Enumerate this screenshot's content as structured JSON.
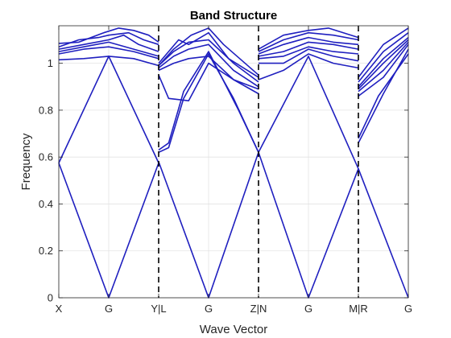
{
  "chart_data": {
    "type": "line",
    "title": "Band Structure",
    "xlabel": "Wave Vector",
    "ylabel": "Frequency",
    "xlim": [
      0,
      7
    ],
    "ylim": [
      0,
      1.16
    ],
    "grid": true,
    "legend": "none",
    "line_color": "#1f1fbf",
    "divider_color": "#000000",
    "x_ticks": [
      {
        "x": 0,
        "label": "X"
      },
      {
        "x": 1,
        "label": "G"
      },
      {
        "x": 2,
        "label": "Y|L"
      },
      {
        "x": 3,
        "label": "G"
      },
      {
        "x": 4,
        "label": "Z|N"
      },
      {
        "x": 5,
        "label": "G"
      },
      {
        "x": 6,
        "label": "M|R"
      },
      {
        "x": 7,
        "label": "G"
      }
    ],
    "y_ticks": [
      {
        "y": 0,
        "label": "0"
      },
      {
        "y": 0.2,
        "label": "0.2"
      },
      {
        "y": 0.4,
        "label": "0.4"
      },
      {
        "y": 0.6,
        "label": "0.6"
      },
      {
        "y": 0.8,
        "label": "0.8"
      },
      {
        "y": 1.0,
        "label": "1"
      }
    ],
    "segment_boundaries": [
      2,
      4,
      6
    ],
    "series": [
      {
        "x": [
          0,
          1,
          2
        ],
        "y": [
          0.575,
          0,
          0.575
        ]
      },
      {
        "x": [
          0,
          1,
          2
        ],
        "y": [
          0.575,
          1.03,
          0.575
        ]
      },
      {
        "x": [
          0,
          0.5,
          1,
          1.5,
          2
        ],
        "y": [
          1.015,
          1.02,
          1.03,
          1.02,
          0.99
        ]
      },
      {
        "x": [
          0,
          0.5,
          1,
          1.5,
          2
        ],
        "y": [
          1.04,
          1.06,
          1.07,
          1.05,
          1.02
        ]
      },
      {
        "x": [
          0,
          0.5,
          1,
          1.5,
          2
        ],
        "y": [
          1.05,
          1.07,
          1.09,
          1.06,
          1.03
        ]
      },
      {
        "x": [
          0,
          0.5,
          1,
          1.3,
          1.6,
          2
        ],
        "y": [
          1.06,
          1.08,
          1.1,
          1.12,
          1.08,
          1.05
        ]
      },
      {
        "x": [
          0,
          0.4,
          0.8,
          1,
          1.4,
          1.7,
          2
        ],
        "y": [
          1.07,
          1.1,
          1.11,
          1.12,
          1.13,
          1.1,
          1.08
        ]
      },
      {
        "x": [
          0,
          0.4,
          0.9,
          1.2,
          1.5,
          1.8,
          2
        ],
        "y": [
          1.085,
          1.09,
          1.13,
          1.15,
          1.14,
          1.12,
          1.09
        ]
      },
      {
        "x": [
          2,
          3,
          4
        ],
        "y": [
          0.58,
          0,
          0.62
        ]
      },
      {
        "x": [
          2,
          2.2,
          2.5,
          3,
          3.5,
          4
        ],
        "y": [
          0.62,
          0.64,
          0.85,
          1.04,
          0.85,
          0.62
        ]
      },
      {
        "x": [
          2,
          2.2,
          2.5,
          3,
          3.6,
          4
        ],
        "y": [
          0.63,
          0.66,
          0.88,
          1.05,
          0.8,
          0.62
        ]
      },
      {
        "x": [
          2,
          2.2,
          2.6,
          3,
          3.5,
          4
        ],
        "y": [
          0.95,
          0.85,
          0.84,
          1.0,
          0.93,
          0.87
        ]
      },
      {
        "x": [
          2,
          2.3,
          2.6,
          3,
          3.5,
          4
        ],
        "y": [
          0.97,
          1.0,
          1.02,
          1.03,
          0.93,
          0.89
        ]
      },
      {
        "x": [
          2,
          2.3,
          2.6,
          3,
          3.5,
          4
        ],
        "y": [
          0.98,
          1.03,
          1.06,
          1.08,
          0.97,
          0.9
        ]
      },
      {
        "x": [
          2,
          2.3,
          2.6,
          3,
          3.5,
          4
        ],
        "y": [
          0.99,
          1.05,
          1.09,
          1.1,
          1.0,
          0.92
        ]
      },
      {
        "x": [
          2,
          2.4,
          2.6,
          3,
          3.4,
          4
        ],
        "y": [
          1.0,
          1.1,
          1.08,
          1.13,
          1.02,
          0.94
        ]
      },
      {
        "x": [
          2,
          2.3,
          2.65,
          3,
          3.3,
          4
        ],
        "y": [
          0.99,
          1.06,
          1.12,
          1.15,
          1.08,
          0.95
        ]
      },
      {
        "x": [
          4,
          5,
          6
        ],
        "y": [
          0.62,
          0,
          0.55
        ]
      },
      {
        "x": [
          4,
          5,
          6
        ],
        "y": [
          0.62,
          1.03,
          0.55
        ]
      },
      {
        "x": [
          4,
          4.5,
          5,
          5.5,
          6
        ],
        "y": [
          0.93,
          0.97,
          1.04,
          1.0,
          0.98
        ]
      },
      {
        "x": [
          4,
          4.5,
          5,
          5.5,
          6
        ],
        "y": [
          1.0,
          1.0,
          1.06,
          1.03,
          1.01
        ]
      },
      {
        "x": [
          4,
          4.5,
          5,
          5.5,
          6
        ],
        "y": [
          1.02,
          1.03,
          1.07,
          1.05,
          1.04
        ]
      },
      {
        "x": [
          4,
          4.5,
          5,
          5.5,
          6
        ],
        "y": [
          1.03,
          1.05,
          1.09,
          1.08,
          1.06
        ]
      },
      {
        "x": [
          4,
          4.5,
          5,
          5.5,
          6
        ],
        "y": [
          1.04,
          1.08,
          1.11,
          1.09,
          1.08
        ]
      },
      {
        "x": [
          4,
          4.5,
          5,
          5.5,
          6
        ],
        "y": [
          1.05,
          1.1,
          1.13,
          1.12,
          1.1
        ]
      },
      {
        "x": [
          4,
          4.5,
          5,
          5.4,
          6
        ],
        "y": [
          1.06,
          1.12,
          1.14,
          1.15,
          1.11
        ]
      },
      {
        "x": [
          6,
          7
        ],
        "y": [
          0.55,
          0
        ]
      },
      {
        "x": [
          6,
          6.5,
          7
        ],
        "y": [
          0.66,
          0.87,
          1.06
        ]
      },
      {
        "x": [
          6,
          6.4,
          7
        ],
        "y": [
          0.68,
          0.86,
          1.04
        ]
      },
      {
        "x": [
          6,
          6.5,
          7
        ],
        "y": [
          0.86,
          0.94,
          1.08
        ]
      },
      {
        "x": [
          6,
          6.5,
          7
        ],
        "y": [
          0.88,
          0.97,
          1.09
        ]
      },
      {
        "x": [
          6,
          6.5,
          7
        ],
        "y": [
          0.89,
          1.0,
          1.1
        ]
      },
      {
        "x": [
          6,
          6.5,
          7
        ],
        "y": [
          0.9,
          1.02,
          1.11
        ]
      },
      {
        "x": [
          6,
          6.5,
          7
        ],
        "y": [
          0.92,
          1.05,
          1.13
        ]
      },
      {
        "x": [
          6,
          6.5,
          7
        ],
        "y": [
          0.94,
          1.08,
          1.15
        ]
      }
    ]
  }
}
